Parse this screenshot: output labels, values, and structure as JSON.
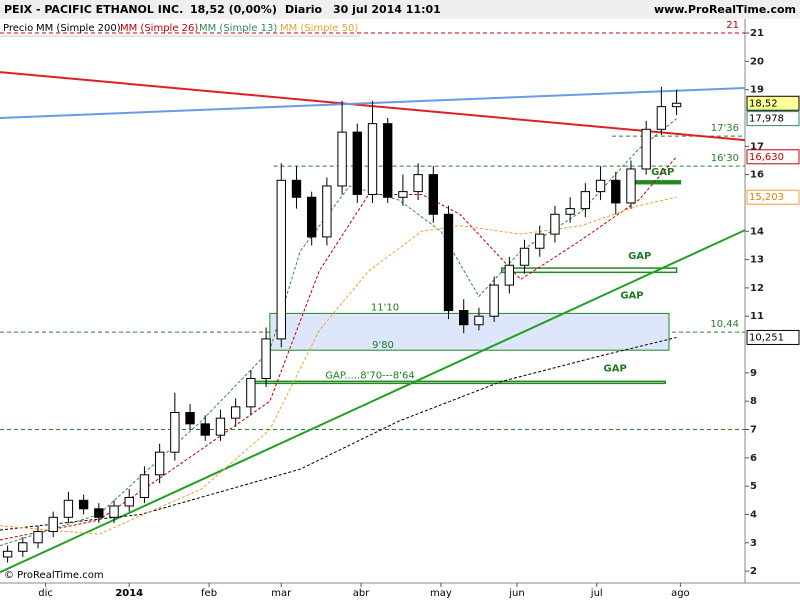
{
  "header": {
    "symbol": "PEIX - PACIFIC ETHANOL INC.",
    "price": "18,52 (0,00%)",
    "period": "Diario",
    "date": "30 jul 2014 11:01",
    "site": "www.ProRealTime.com"
  },
  "footer": "© ProRealTime.com",
  "chart_data": {
    "type": "candlestick",
    "xlim": [
      0,
      196
    ],
    "ylim": [
      1.58,
      21.46
    ],
    "xticks": [
      {
        "value": 12,
        "label": "dic"
      },
      {
        "value": 34,
        "label": "2014"
      },
      {
        "value": 55,
        "label": "feb"
      },
      {
        "value": 74,
        "label": "mar"
      },
      {
        "value": 95,
        "label": "abr"
      },
      {
        "value": 116,
        "label": "may"
      },
      {
        "value": 136,
        "label": "jun"
      },
      {
        "value": 157,
        "label": "jul"
      },
      {
        "value": 179,
        "label": "ago"
      }
    ],
    "yticks": [
      2,
      3,
      4,
      5,
      6,
      7,
      8,
      9,
      11,
      12,
      13,
      14,
      16,
      17,
      19,
      20,
      21
    ],
    "price": {
      "name": "Precio",
      "x": [
        2,
        6,
        10,
        14,
        18,
        22,
        26,
        30,
        34,
        38,
        42,
        46,
        50,
        54,
        58,
        62,
        66,
        70,
        74,
        78,
        82,
        86,
        90,
        94,
        98,
        102,
        106,
        110,
        114,
        118,
        122,
        126,
        130,
        134,
        138,
        142,
        146,
        150,
        154,
        158,
        162,
        166,
        170,
        174,
        178
      ],
      "open": [
        2.5,
        2.7,
        3.0,
        3.4,
        3.9,
        4.5,
        4.2,
        3.9,
        4.3,
        4.6,
        5.4,
        6.2,
        7.6,
        7.2,
        6.8,
        7.4,
        7.8,
        8.8,
        10.2,
        15.8,
        15.2,
        13.8,
        15.6,
        17.5,
        15.3,
        17.8,
        15.2,
        15.4,
        16.0,
        14.6,
        11.2,
        10.7,
        11.0,
        12.1,
        12.8,
        13.4,
        13.9,
        14.6,
        14.8,
        15.4,
        15.8,
        15.0,
        16.2,
        17.6,
        18.4
      ],
      "high": [
        2.9,
        3.2,
        3.6,
        4.1,
        4.8,
        4.7,
        4.4,
        4.5,
        4.9,
        5.7,
        6.5,
        8.3,
        7.9,
        7.5,
        7.7,
        8.1,
        9.1,
        10.6,
        16.4,
        16.3,
        15.4,
        15.9,
        18.6,
        17.8,
        18.6,
        18.0,
        16.0,
        16.4,
        16.3,
        14.9,
        11.6,
        11.3,
        12.4,
        13.1,
        13.7,
        14.2,
        14.9,
        15.2,
        15.7,
        16.3,
        16.1,
        16.5,
        17.9,
        19.1,
        19.0
      ],
      "low": [
        2.3,
        2.5,
        2.8,
        3.2,
        3.7,
        4.0,
        3.7,
        3.7,
        4.1,
        4.4,
        5.1,
        5.9,
        7.0,
        6.6,
        6.6,
        7.1,
        7.5,
        8.5,
        9.9,
        14.8,
        13.5,
        13.5,
        15.3,
        15.0,
        15.0,
        15.0,
        14.9,
        15.1,
        14.3,
        10.9,
        10.4,
        10.5,
        10.8,
        11.8,
        12.5,
        13.1,
        13.6,
        14.3,
        14.5,
        15.1,
        14.6,
        14.8,
        16.0,
        17.4,
        18.1
      ],
      "close": [
        2.7,
        3.0,
        3.4,
        3.9,
        4.5,
        4.2,
        3.9,
        4.3,
        4.6,
        5.4,
        6.2,
        7.6,
        7.2,
        6.8,
        7.4,
        7.8,
        8.8,
        10.2,
        15.8,
        15.2,
        13.8,
        15.6,
        17.5,
        15.3,
        17.8,
        15.2,
        15.4,
        16.0,
        14.6,
        11.2,
        10.7,
        11.0,
        12.1,
        12.8,
        13.4,
        13.9,
        14.6,
        14.8,
        15.4,
        15.8,
        15.0,
        16.2,
        17.6,
        18.4,
        18.52
      ],
      "last_label": "18,52",
      "color": "#000000"
    },
    "series": [
      {
        "name": "MM (Simple 200)",
        "color": "#000000",
        "x": [
          0,
          37,
          79,
          105,
          132,
          158,
          178
        ],
        "values": [
          3.45,
          4.0,
          5.6,
          7.3,
          8.7,
          9.6,
          10.251
        ],
        "last_label": "10,251"
      },
      {
        "name": "MM (Simple 26)",
        "color": "#c00000",
        "x": [
          0,
          26,
          53,
          71,
          84,
          97,
          111,
          121,
          137,
          153,
          168,
          178
        ],
        "values": [
          3.1,
          3.8,
          6.3,
          8.0,
          12.6,
          15.3,
          15.3,
          14.6,
          12.3,
          13.7,
          15.1,
          16.63
        ],
        "last_label": "16,630"
      },
      {
        "name": "MM (Simple 13)",
        "color": "#2e8b57",
        "x": [
          0,
          26,
          53,
          71,
          79,
          92,
          105,
          116,
          126,
          137,
          153,
          168,
          178
        ],
        "values": [
          2.9,
          4.0,
          7.3,
          9.8,
          13.3,
          15.6,
          15.1,
          14.0,
          11.7,
          13.3,
          14.7,
          16.9,
          17.978
        ],
        "last_label": "17,978"
      },
      {
        "name": "MM (Simple 50)",
        "color": "#f0a030",
        "x": [
          0,
          26,
          53,
          71,
          84,
          97,
          111,
          121,
          137,
          153,
          168,
          178
        ],
        "values": [
          3.6,
          3.3,
          4.9,
          7.0,
          10.5,
          12.6,
          14.0,
          14.2,
          13.9,
          14.2,
          14.9,
          15.203
        ],
        "last_label": "15,203"
      }
    ],
    "trendlines": [
      {
        "color": "#e02020",
        "x": [
          0,
          196
        ],
        "values": [
          19.62,
          17.22
        ]
      },
      {
        "color": "#6a9be8",
        "x": [
          0,
          196
        ],
        "values": [
          18.0,
          19.06
        ]
      },
      {
        "color": "#22a022",
        "x": [
          0,
          196
        ],
        "values": [
          1.96,
          14.04
        ]
      }
    ],
    "levels": [
      {
        "value": 21,
        "label": "21",
        "color": "#c00000",
        "from": 0
      },
      {
        "value": 17.36,
        "label": "17'36",
        "color": "#2e7d2e",
        "from": 161
      },
      {
        "value": 16.3,
        "label": "16'30",
        "color": "#2e7d2e",
        "from": 72
      },
      {
        "value": 10.44,
        "label": "10,44",
        "color": "#2e7d2e",
        "from": 0
      },
      {
        "value": 7,
        "color": "#2e7d2e",
        "from": 0
      }
    ],
    "gaps": [
      {
        "x": [
          166,
          179
        ],
        "top": 15.78,
        "bottom": 15.68,
        "labels": [
          "GAP"
        ]
      },
      {
        "x": [
          132,
          178
        ],
        "top": 12.7,
        "bottom": 12.55,
        "labels": [
          "GAP"
        ]
      },
      {
        "x": [
          71,
          176
        ],
        "top": 11.1,
        "bottom": 9.8,
        "labels": [
          "GAP",
          "11'10",
          "9'80"
        ]
      },
      {
        "x": [
          66,
          175
        ],
        "top": 8.7,
        "bottom": 8.64,
        "labels": [
          "GAP",
          "GAP.....8'70---8'64"
        ]
      }
    ]
  }
}
